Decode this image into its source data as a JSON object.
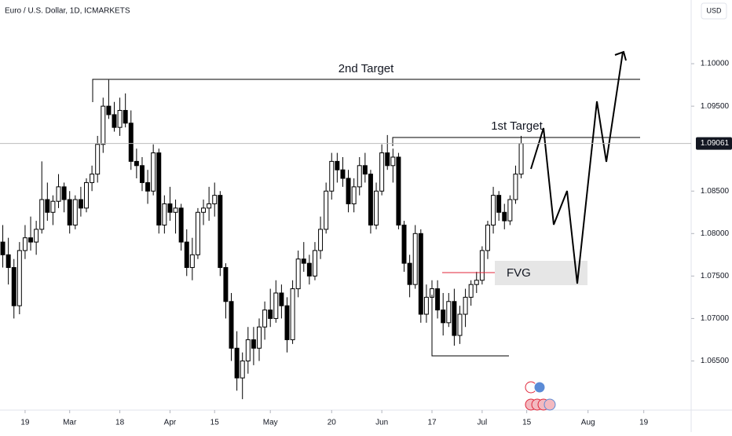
{
  "chart_data": {
    "type": "candlestick",
    "title": "Euro / U.S. Dollar, 1D, ICMARKETS",
    "currency": "USD",
    "annotations": [
      "2nd Target",
      "1st Target",
      "FVG"
    ],
    "last_price": {
      "value": 1.09061,
      "label": "1.09061"
    },
    "ylim": [
      1.0594,
      1.1075
    ],
    "yticks": [
      {
        "value": 1.065,
        "label": "1.06500"
      },
      {
        "value": 1.07,
        "label": "1.07000"
      },
      {
        "value": 1.075,
        "label": "1.07500"
      },
      {
        "value": 1.08,
        "label": "1.08000"
      },
      {
        "value": 1.085,
        "label": "1.08500"
      },
      {
        "value": 1.095,
        "label": "1.09500"
      },
      {
        "value": 1.1,
        "label": "1.10000"
      }
    ],
    "xlim": [
      -0.5,
      123.5
    ],
    "xticks": [
      {
        "value": 4,
        "label": "19"
      },
      {
        "value": 12,
        "label": "Mar"
      },
      {
        "value": 21,
        "label": "18"
      },
      {
        "value": 30,
        "label": "Apr"
      },
      {
        "value": 38,
        "label": "15"
      },
      {
        "value": 48,
        "label": "May"
      },
      {
        "value": 59,
        "label": "20"
      },
      {
        "value": 68,
        "label": "Jun"
      },
      {
        "value": 77,
        "label": "17"
      },
      {
        "value": 86,
        "label": "Jul"
      },
      {
        "value": 94,
        "label": "15"
      },
      {
        "value": 105,
        "label": "Aug"
      },
      {
        "value": 115,
        "label": "19"
      }
    ],
    "up_color": "#ffffff",
    "down_color": "#000000",
    "candles": [
      [
        1.079,
        1.081,
        1.076,
        1.0775
      ],
      [
        1.0775,
        1.0795,
        1.074,
        1.076
      ],
      [
        1.076,
        1.077,
        1.07,
        1.0715
      ],
      [
        1.0715,
        1.079,
        1.0705,
        1.078
      ],
      [
        1.078,
        1.081,
        1.077,
        1.0795
      ],
      [
        1.0795,
        1.082,
        1.078,
        1.079
      ],
      [
        1.079,
        1.0815,
        1.0775,
        1.0805
      ],
      [
        1.0805,
        1.0885,
        1.08,
        1.084
      ],
      [
        1.084,
        1.086,
        1.0815,
        1.0825
      ],
      [
        1.0825,
        1.0845,
        1.081,
        1.0838
      ],
      [
        1.0838,
        1.087,
        1.083,
        1.0855
      ],
      [
        1.0855,
        1.086,
        1.0825,
        1.084
      ],
      [
        1.084,
        1.085,
        1.08,
        1.081
      ],
      [
        1.081,
        1.0845,
        1.0805,
        1.084
      ],
      [
        1.084,
        1.0855,
        1.082,
        1.083
      ],
      [
        1.083,
        1.0865,
        1.0825,
        1.086
      ],
      [
        1.086,
        1.088,
        1.085,
        1.087
      ],
      [
        1.087,
        1.0915,
        1.086,
        1.0905
      ],
      [
        1.0905,
        1.096,
        1.0895,
        1.095
      ],
      [
        1.095,
        1.0981,
        1.0935,
        1.094
      ],
      [
        1.094,
        1.0955,
        1.092,
        1.0925
      ],
      [
        1.0925,
        1.096,
        1.0915,
        1.0945
      ],
      [
        1.0945,
        1.0965,
        1.0925,
        1.093
      ],
      [
        1.093,
        1.0945,
        1.0875,
        1.0885
      ],
      [
        1.0885,
        1.09,
        1.0865,
        1.088
      ],
      [
        1.088,
        1.089,
        1.085,
        1.086
      ],
      [
        1.086,
        1.0875,
        1.0835,
        1.085
      ],
      [
        1.085,
        1.0905,
        1.0845,
        1.0895
      ],
      [
        1.0895,
        1.09,
        1.08,
        1.081
      ],
      [
        1.081,
        1.0845,
        1.08,
        1.0835
      ],
      [
        1.0835,
        1.0855,
        1.0815,
        1.0825
      ],
      [
        1.0825,
        1.084,
        1.08,
        1.083
      ],
      [
        1.083,
        1.0835,
        1.078,
        1.079
      ],
      [
        1.079,
        1.0805,
        1.075,
        1.076
      ],
      [
        1.076,
        1.0795,
        1.0745,
        1.0775
      ],
      [
        1.0775,
        1.083,
        1.077,
        1.0825
      ],
      [
        1.0825,
        1.084,
        1.081,
        1.083
      ],
      [
        1.083,
        1.0855,
        1.0815,
        1.0835
      ],
      [
        1.0835,
        1.086,
        1.082,
        1.0845
      ],
      [
        1.0845,
        1.085,
        1.075,
        1.076
      ],
      [
        1.076,
        1.0765,
        1.07,
        1.072
      ],
      [
        1.072,
        1.073,
        1.065,
        1.0665
      ],
      [
        1.0665,
        1.0685,
        1.0615,
        1.063
      ],
      [
        1.063,
        1.066,
        1.0605,
        1.065
      ],
      [
        1.065,
        1.069,
        1.0635,
        1.0675
      ],
      [
        1.0675,
        1.069,
        1.0645,
        1.0665
      ],
      [
        1.0665,
        1.07,
        1.065,
        1.069
      ],
      [
        1.069,
        1.072,
        1.0675,
        1.071
      ],
      [
        1.071,
        1.0735,
        1.069,
        1.07
      ],
      [
        1.07,
        1.0745,
        1.0695,
        1.073
      ],
      [
        1.073,
        1.074,
        1.07,
        1.0715
      ],
      [
        1.0715,
        1.0725,
        1.066,
        1.0675
      ],
      [
        1.0675,
        1.0745,
        1.067,
        1.0735
      ],
      [
        1.0735,
        1.078,
        1.0725,
        1.077
      ],
      [
        1.077,
        1.079,
        1.0755,
        1.0765
      ],
      [
        1.0765,
        1.0775,
        1.074,
        1.075
      ],
      [
        1.075,
        1.079,
        1.0745,
        1.078
      ],
      [
        1.078,
        1.082,
        1.077,
        1.0805
      ],
      [
        1.0805,
        1.086,
        1.08,
        1.085
      ],
      [
        1.085,
        1.0895,
        1.084,
        1.0885
      ],
      [
        1.0885,
        1.0895,
        1.086,
        1.0875
      ],
      [
        1.0875,
        1.089,
        1.0855,
        1.0865
      ],
      [
        1.0865,
        1.0875,
        1.0825,
        1.0835
      ],
      [
        1.0835,
        1.0865,
        1.0825,
        1.0855
      ],
      [
        1.0855,
        1.089,
        1.0845,
        1.088
      ],
      [
        1.088,
        1.0895,
        1.086,
        1.087
      ],
      [
        1.087,
        1.0875,
        1.08,
        1.081
      ],
      [
        1.081,
        1.086,
        1.0805,
        1.085
      ],
      [
        1.085,
        1.0905,
        1.0845,
        1.0895
      ],
      [
        1.0895,
        1.0916,
        1.0875,
        1.088
      ],
      [
        1.088,
        1.09,
        1.086,
        1.089
      ],
      [
        1.089,
        1.0895,
        1.0805,
        1.081
      ],
      [
        1.081,
        1.0815,
        1.0755,
        1.0765
      ],
      [
        1.0765,
        1.0775,
        1.0725,
        1.074
      ],
      [
        1.074,
        1.081,
        1.0735,
        1.08
      ],
      [
        1.08,
        1.0805,
        1.0695,
        1.0705
      ],
      [
        1.0705,
        1.074,
        1.0695,
        1.0725
      ],
      [
        1.0725,
        1.0745,
        1.071,
        1.0735
      ],
      [
        1.0735,
        1.0745,
        1.07,
        1.071
      ],
      [
        1.071,
        1.073,
        1.068,
        1.0695
      ],
      [
        1.0695,
        1.073,
        1.069,
        1.072
      ],
      [
        1.072,
        1.0735,
        1.0668,
        1.068
      ],
      [
        1.068,
        1.0715,
        1.067,
        1.0705
      ],
      [
        1.0705,
        1.0735,
        1.069,
        1.0725
      ],
      [
        1.0725,
        1.0745,
        1.0715,
        1.074
      ],
      [
        1.074,
        1.0755,
        1.073,
        1.0745
      ],
      [
        1.0745,
        1.0785,
        1.074,
        1.078
      ],
      [
        1.078,
        1.0815,
        1.077,
        1.081
      ],
      [
        1.081,
        1.0855,
        1.08,
        1.0845
      ],
      [
        1.0845,
        1.085,
        1.0815,
        1.0825
      ],
      [
        1.0825,
        1.0835,
        1.0805,
        1.0815
      ],
      [
        1.0815,
        1.0845,
        1.081,
        1.084
      ],
      [
        1.084,
        1.088,
        1.0835,
        1.087
      ],
      [
        1.087,
        1.0915,
        1.0865,
        1.0906
      ]
    ]
  }
}
